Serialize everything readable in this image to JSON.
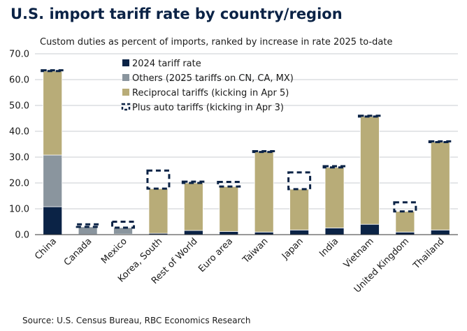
{
  "title": "U.S. import tariff rate by country/region",
  "subtitle": "Custom duties as percent of imports, ranked by increase in rate 2025 to-date",
  "source": "Source: U.S. Census Bureau, RBC Economics Research",
  "chart_data": {
    "type": "bar",
    "stacked": true,
    "categories": [
      "China",
      "Canada",
      "Mexico",
      "Korea, South",
      "Rest of World",
      "Euro area",
      "Taiwan",
      "Japan",
      "India",
      "Vietnam",
      "United Kingdom",
      "Thailand"
    ],
    "series": [
      {
        "name": "2024 tariff rate",
        "color": "#0b2346",
        "values": [
          10.8,
          0.1,
          0.2,
          0.5,
          1.6,
          1.2,
          1.0,
          1.8,
          2.6,
          4.0,
          1.0,
          1.8
        ]
      },
      {
        "name": "Others (2025 tariffs on CN, CA, MX)",
        "color": "#8a959e",
        "values": [
          20.0,
          2.9,
          2.5,
          0.0,
          0.0,
          0.0,
          0.0,
          0.0,
          0.0,
          0.0,
          0.0,
          0.0
        ]
      },
      {
        "name": "Reciprocal tariffs (kicking in Apr 5)",
        "color": "#b8ac78",
        "values": [
          32.5,
          0.0,
          0.0,
          17.3,
          18.4,
          17.4,
          31.0,
          15.8,
          23.4,
          41.7,
          8.0,
          34.0
        ]
      },
      {
        "name": "Plus auto tariffs (kicking in Apr 3)",
        "style": "dashed",
        "values": [
          0.3,
          1.0,
          2.3,
          7.0,
          0.5,
          1.8,
          0.3,
          6.5,
          0.5,
          0.3,
          3.5,
          0.3
        ]
      }
    ],
    "ylim": [
      0,
      70
    ],
    "yticks": [
      "0.0",
      "10.0",
      "20.0",
      "30.0",
      "40.0",
      "50.0",
      "60.0",
      "70.0"
    ],
    "xlabel": "",
    "ylabel": "",
    "grid": true,
    "legend": "top-left"
  }
}
